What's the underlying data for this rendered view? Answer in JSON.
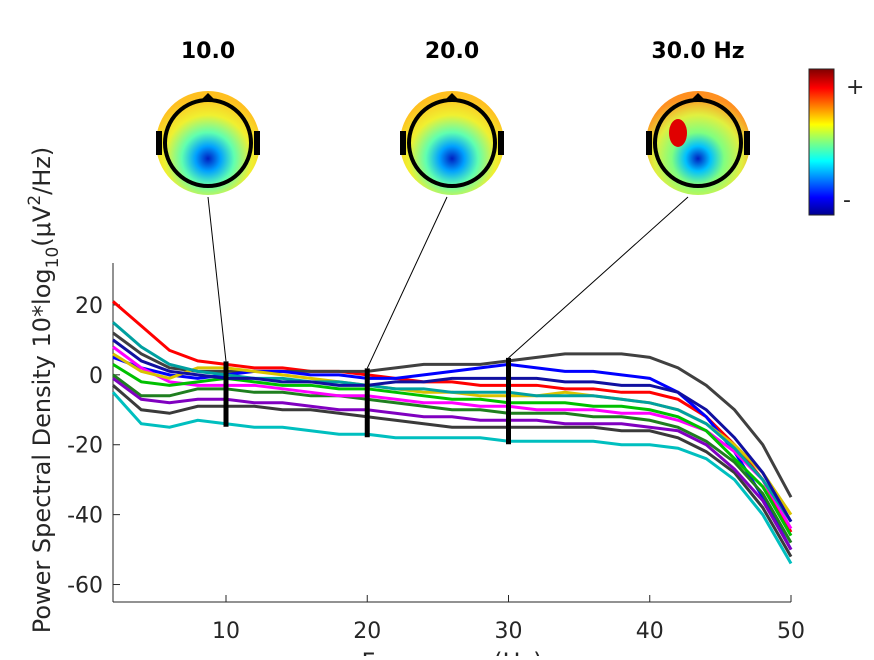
{
  "chart_data": {
    "type": "line",
    "y_label": {
      "main": "Power Spectral Density 10*log",
      "sub": "10",
      "open": "(μV",
      "sup": "2",
      "close": "/Hz)"
    },
    "x_label": "Frequency (Hz)",
    "topo_titles": [
      "10.0",
      "20.0",
      "30.0 Hz"
    ],
    "markers": [
      10,
      20,
      30
    ],
    "colorbar_labels": [
      "+",
      "-"
    ],
    "x": [
      2,
      4,
      6,
      8,
      10,
      12,
      14,
      16,
      18,
      20,
      22,
      24,
      26,
      28,
      30,
      32,
      34,
      36,
      38,
      40,
      42,
      44,
      46,
      48,
      50
    ],
    "xlim": [
      2,
      50
    ],
    "xticks": [
      10,
      20,
      30,
      40,
      50
    ],
    "ylim": [
      -65,
      32
    ],
    "yticks": [
      20,
      0,
      -20,
      -40,
      -60
    ],
    "series": [
      {
        "color": "#ff0000",
        "values": [
          21,
          14,
          7,
          4,
          3,
          2,
          2,
          1,
          1,
          0,
          -1,
          -2,
          -2,
          -3,
          -3,
          -3,
          -4,
          -4,
          -5,
          -5,
          -7,
          -12,
          -20,
          -30,
          -45
        ]
      },
      {
        "color": "#404040",
        "values": [
          12,
          6,
          2,
          1,
          1,
          1,
          1,
          1,
          1,
          1,
          2,
          3,
          3,
          3,
          4,
          5,
          6,
          6,
          6,
          5,
          2,
          -3,
          -10,
          -20,
          -35
        ]
      },
      {
        "color": "#0000ff",
        "values": [
          5,
          2,
          0,
          -1,
          0,
          1,
          1,
          0,
          0,
          -1,
          -1,
          0,
          1,
          2,
          3,
          2,
          1,
          1,
          0,
          -1,
          -5,
          -12,
          -22,
          -35,
          -50
        ]
      },
      {
        "color": "#00bfbf",
        "values": [
          -5,
          -14,
          -15,
          -13,
          -14,
          -15,
          -15,
          -16,
          -17,
          -17,
          -18,
          -18,
          -18,
          -18,
          -19,
          -19,
          -19,
          -19,
          -20,
          -20,
          -21,
          -24,
          -30,
          -40,
          -54
        ]
      },
      {
        "color": "#3a3a3a",
        "values": [
          -3,
          -10,
          -11,
          -9,
          -9,
          -9,
          -10,
          -10,
          -11,
          -12,
          -13,
          -14,
          -15,
          -15,
          -15,
          -15,
          -15,
          -15,
          -16,
          -16,
          -18,
          -22,
          -28,
          -38,
          -52
        ]
      },
      {
        "color": "#1f7f1f",
        "values": [
          0,
          -6,
          -6,
          -4,
          -4,
          -5,
          -5,
          -6,
          -6,
          -7,
          -8,
          -9,
          -10,
          -10,
          -11,
          -11,
          -11,
          -12,
          -12,
          -13,
          -15,
          -19,
          -25,
          -34,
          -48
        ]
      },
      {
        "color": "#ff00ff",
        "values": [
          8,
          2,
          -2,
          -3,
          -3,
          -3,
          -4,
          -5,
          -6,
          -6,
          -7,
          -8,
          -8,
          -9,
          -9,
          -10,
          -10,
          -10,
          -11,
          -11,
          -13,
          -16,
          -22,
          -30,
          -44
        ]
      },
      {
        "color": "#d9c300",
        "values": [
          6,
          1,
          -1,
          2,
          2,
          1,
          0,
          -1,
          -2,
          -3,
          -4,
          -5,
          -5,
          -6,
          -6,
          -6,
          -5,
          -6,
          -7,
          -8,
          -10,
          -14,
          -20,
          -28,
          -40
        ]
      },
      {
        "color": "#00a0a0",
        "values": [
          15,
          8,
          3,
          1,
          0,
          -1,
          -1,
          -2,
          -2,
          -3,
          -4,
          -4,
          -5,
          -5,
          -5,
          -6,
          -6,
          -6,
          -7,
          -8,
          -10,
          -14,
          -21,
          -30,
          -42
        ]
      },
      {
        "color": "#00c000",
        "values": [
          3,
          -2,
          -3,
          -2,
          -1,
          -2,
          -3,
          -3,
          -4,
          -4,
          -5,
          -6,
          -7,
          -7,
          -8,
          -8,
          -8,
          -9,
          -9,
          -10,
          -12,
          -16,
          -24,
          -32,
          -46
        ]
      },
      {
        "color": "#8000c0",
        "values": [
          -1,
          -7,
          -8,
          -7,
          -7,
          -8,
          -8,
          -9,
          -10,
          -10,
          -11,
          -12,
          -12,
          -13,
          -13,
          -13,
          -14,
          -14,
          -14,
          -15,
          -16,
          -20,
          -27,
          -36,
          -50
        ]
      },
      {
        "color": "#1010a0",
        "values": [
          10,
          4,
          1,
          0,
          -1,
          -1,
          -2,
          -2,
          -3,
          -3,
          -2,
          -2,
          -1,
          -1,
          -1,
          -1,
          -2,
          -2,
          -3,
          -3,
          -5,
          -10,
          -18,
          -28,
          -42
        ]
      }
    ]
  }
}
